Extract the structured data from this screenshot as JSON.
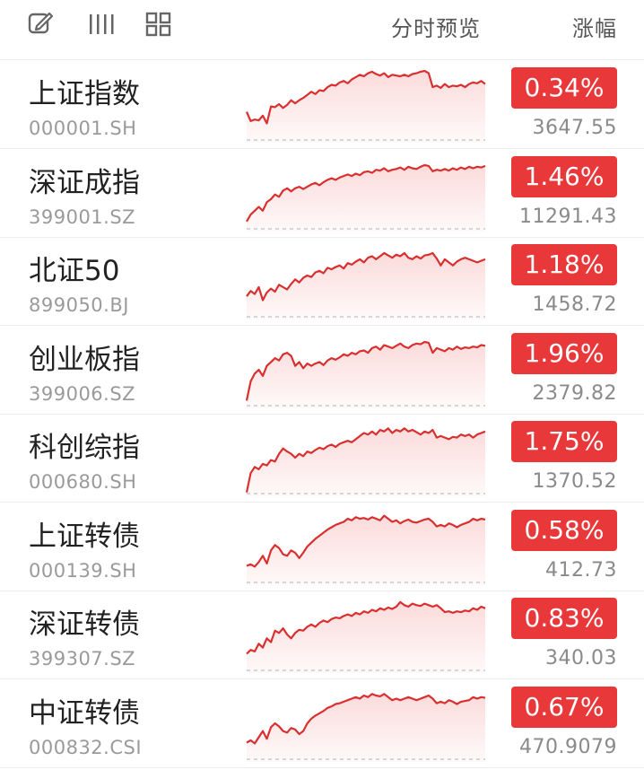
{
  "header": {
    "icons": [
      "edit-icon",
      "list-view-icon",
      "grid-view-icon"
    ],
    "preview_label": "分时预览",
    "change_label": "涨幅"
  },
  "colors": {
    "up": "#e8383a",
    "line": "#d9302f",
    "fill": "#fbd9d9",
    "baseline": "#c8c8c8",
    "code_text": "#9a9a9a"
  },
  "indices": [
    {
      "name": "上证指数",
      "code": "000001.SH",
      "change": "0.34%",
      "price": "3647.55",
      "series": [
        0.4,
        0.28,
        0.3,
        0.29,
        0.35,
        0.25,
        0.47,
        0.46,
        0.5,
        0.45,
        0.49,
        0.55,
        0.51,
        0.55,
        0.58,
        0.62,
        0.66,
        0.63,
        0.68,
        0.67,
        0.72,
        0.75,
        0.74,
        0.78,
        0.8,
        0.77,
        0.82,
        0.85,
        0.88,
        0.86,
        0.9,
        0.92,
        0.89,
        0.87,
        0.9,
        0.85,
        0.88,
        0.87,
        0.86,
        0.88,
        0.86,
        0.89,
        0.9,
        0.92,
        0.93,
        0.9,
        0.72,
        0.74,
        0.71,
        0.76,
        0.72,
        0.74,
        0.73,
        0.75,
        0.72,
        0.76,
        0.78,
        0.77,
        0.8,
        0.76
      ]
    },
    {
      "name": "深证成指",
      "code": "399001.SZ",
      "change": "1.46%",
      "price": "11291.43",
      "series": [
        0.13,
        0.22,
        0.27,
        0.32,
        0.27,
        0.38,
        0.42,
        0.48,
        0.45,
        0.53,
        0.56,
        0.52,
        0.56,
        0.58,
        0.55,
        0.58,
        0.61,
        0.63,
        0.6,
        0.64,
        0.67,
        0.69,
        0.67,
        0.7,
        0.72,
        0.74,
        0.72,
        0.75,
        0.73,
        0.77,
        0.78,
        0.76,
        0.8,
        0.79,
        0.82,
        0.78,
        0.8,
        0.81,
        0.83,
        0.8,
        0.84,
        0.82,
        0.81,
        0.84,
        0.86,
        0.85,
        0.78,
        0.8,
        0.79,
        0.81,
        0.79,
        0.82,
        0.8,
        0.83,
        0.81,
        0.84,
        0.82,
        0.84,
        0.83,
        0.85
      ]
    },
    {
      "name": "北证50",
      "code": "899050.BJ",
      "change": "1.18%",
      "price": "1458.72",
      "series": [
        0.3,
        0.37,
        0.33,
        0.42,
        0.25,
        0.35,
        0.4,
        0.36,
        0.45,
        0.42,
        0.39,
        0.46,
        0.52,
        0.48,
        0.54,
        0.57,
        0.55,
        0.61,
        0.63,
        0.6,
        0.67,
        0.65,
        0.68,
        0.7,
        0.66,
        0.73,
        0.71,
        0.75,
        0.78,
        0.74,
        0.8,
        0.82,
        0.78,
        0.82,
        0.86,
        0.83,
        0.8,
        0.84,
        0.82,
        0.86,
        0.8,
        0.78,
        0.82,
        0.79,
        0.83,
        0.84,
        0.86,
        0.79,
        0.7,
        0.78,
        0.74,
        0.7,
        0.75,
        0.78,
        0.8,
        0.78,
        0.76,
        0.74,
        0.76,
        0.78
      ]
    },
    {
      "name": "创业板指",
      "code": "399006.SZ",
      "change": "1.96%",
      "price": "2379.82",
      "series": [
        0.1,
        0.35,
        0.45,
        0.5,
        0.42,
        0.55,
        0.6,
        0.65,
        0.62,
        0.7,
        0.72,
        0.68,
        0.55,
        0.6,
        0.52,
        0.58,
        0.55,
        0.58,
        0.6,
        0.56,
        0.62,
        0.65,
        0.63,
        0.66,
        0.7,
        0.68,
        0.72,
        0.7,
        0.74,
        0.75,
        0.72,
        0.78,
        0.8,
        0.76,
        0.82,
        0.8,
        0.78,
        0.81,
        0.84,
        0.8,
        0.78,
        0.82,
        0.84,
        0.83,
        0.86,
        0.85,
        0.72,
        0.78,
        0.76,
        0.74,
        0.78,
        0.76,
        0.8,
        0.77,
        0.79,
        0.78,
        0.8,
        0.79,
        0.82,
        0.81
      ]
    },
    {
      "name": "科创综指",
      "code": "000680.SH",
      "change": "1.75%",
      "price": "1370.52",
      "series": [
        0.05,
        0.3,
        0.38,
        0.35,
        0.42,
        0.4,
        0.47,
        0.45,
        0.55,
        0.62,
        0.58,
        0.55,
        0.5,
        0.55,
        0.52,
        0.58,
        0.56,
        0.6,
        0.63,
        0.61,
        0.65,
        0.67,
        0.64,
        0.68,
        0.7,
        0.72,
        0.7,
        0.74,
        0.78,
        0.82,
        0.8,
        0.84,
        0.8,
        0.86,
        0.84,
        0.88,
        0.82,
        0.86,
        0.84,
        0.88,
        0.84,
        0.86,
        0.83,
        0.8,
        0.84,
        0.82,
        0.86,
        0.76,
        0.78,
        0.76,
        0.74,
        0.77,
        0.76,
        0.8,
        0.78,
        0.8,
        0.76,
        0.8,
        0.82,
        0.84
      ]
    },
    {
      "name": "上证转债",
      "code": "000139.SH",
      "change": "0.58%",
      "price": "412.73",
      "series": [
        0.25,
        0.27,
        0.24,
        0.3,
        0.38,
        0.28,
        0.45,
        0.52,
        0.48,
        0.4,
        0.38,
        0.45,
        0.42,
        0.35,
        0.42,
        0.5,
        0.55,
        0.6,
        0.64,
        0.68,
        0.72,
        0.75,
        0.78,
        0.8,
        0.82,
        0.86,
        0.84,
        0.88,
        0.86,
        0.87,
        0.85,
        0.88,
        0.86,
        0.84,
        0.9,
        0.86,
        0.82,
        0.84,
        0.8,
        0.83,
        0.85,
        0.82,
        0.81,
        0.83,
        0.85,
        0.86,
        0.82,
        0.76,
        0.78,
        0.76,
        0.8,
        0.78,
        0.75,
        0.78,
        0.8,
        0.82,
        0.86,
        0.84,
        0.86,
        0.85
      ]
    },
    {
      "name": "深证转债",
      "code": "399307.SZ",
      "change": "0.83%",
      "price": "340.03",
      "series": [
        0.25,
        0.3,
        0.28,
        0.38,
        0.33,
        0.45,
        0.4,
        0.55,
        0.52,
        0.58,
        0.5,
        0.45,
        0.52,
        0.56,
        0.55,
        0.6,
        0.63,
        0.6,
        0.65,
        0.68,
        0.66,
        0.7,
        0.72,
        0.71,
        0.74,
        0.76,
        0.74,
        0.78,
        0.76,
        0.8,
        0.78,
        0.82,
        0.8,
        0.84,
        0.82,
        0.85,
        0.83,
        0.86,
        0.92,
        0.88,
        0.86,
        0.9,
        0.88,
        0.87,
        0.9,
        0.88,
        0.86,
        0.88,
        0.84,
        0.79,
        0.8,
        0.78,
        0.8,
        0.79,
        0.81,
        0.8,
        0.84,
        0.82,
        0.86,
        0.84
      ]
    },
    {
      "name": "中证转债",
      "code": "000832.CSI",
      "change": "0.67%",
      "price": "470.9079",
      "series": [
        0.25,
        0.28,
        0.24,
        0.32,
        0.4,
        0.3,
        0.45,
        0.5,
        0.46,
        0.4,
        0.38,
        0.44,
        0.42,
        0.36,
        0.4,
        0.5,
        0.56,
        0.6,
        0.63,
        0.66,
        0.7,
        0.72,
        0.75,
        0.76,
        0.78,
        0.8,
        0.82,
        0.84,
        0.82,
        0.86,
        0.84,
        0.88,
        0.86,
        0.85,
        0.88,
        0.84,
        0.8,
        0.82,
        0.8,
        0.82,
        0.84,
        0.82,
        0.8,
        0.82,
        0.84,
        0.86,
        0.82,
        0.76,
        0.78,
        0.76,
        0.8,
        0.78,
        0.75,
        0.78,
        0.79,
        0.8,
        0.84,
        0.82,
        0.84,
        0.83
      ]
    }
  ]
}
